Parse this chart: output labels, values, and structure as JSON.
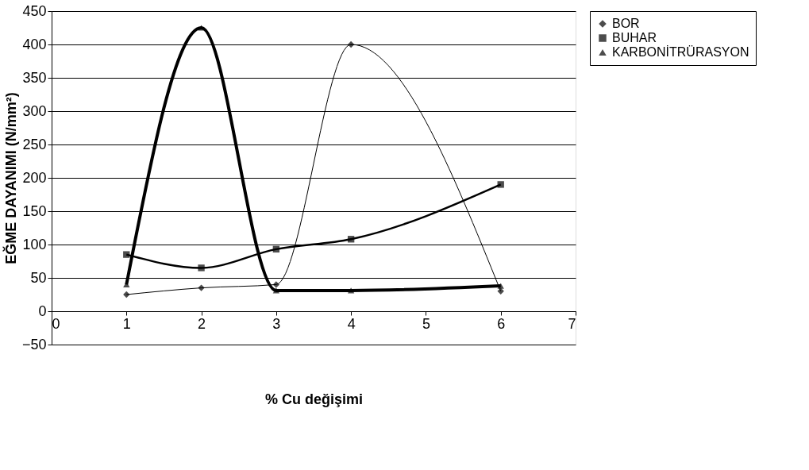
{
  "chart_data": {
    "type": "line",
    "xlabel": "% Cu değişimi",
    "ylabel": "EĞME DAYANIMI (N/mm²)",
    "x": [
      1,
      2,
      3,
      4,
      6
    ],
    "series": [
      {
        "name": "BOR",
        "color": "#000000",
        "marker": "diamond",
        "values": [
          25,
          35,
          40,
          400,
          30
        ]
      },
      {
        "name": "BUHAR",
        "color": "#000000",
        "marker": "square",
        "values": [
          85,
          65,
          93,
          108,
          190
        ]
      },
      {
        "name": "KARBONİTRÜRASYON",
        "color": "#000000",
        "marker": "triangle",
        "values": [
          40,
          425,
          31,
          31,
          38
        ]
      }
    ],
    "xlim": [
      0,
      7
    ],
    "xticks": [
      0,
      1,
      2,
      3,
      4,
      5,
      6,
      7
    ],
    "ylim": [
      -50,
      450
    ],
    "yticks": [
      -50,
      0,
      50,
      100,
      150,
      200,
      250,
      300,
      350,
      400,
      450
    ],
    "grid": "y",
    "legend": "right",
    "line_style": "solid"
  }
}
